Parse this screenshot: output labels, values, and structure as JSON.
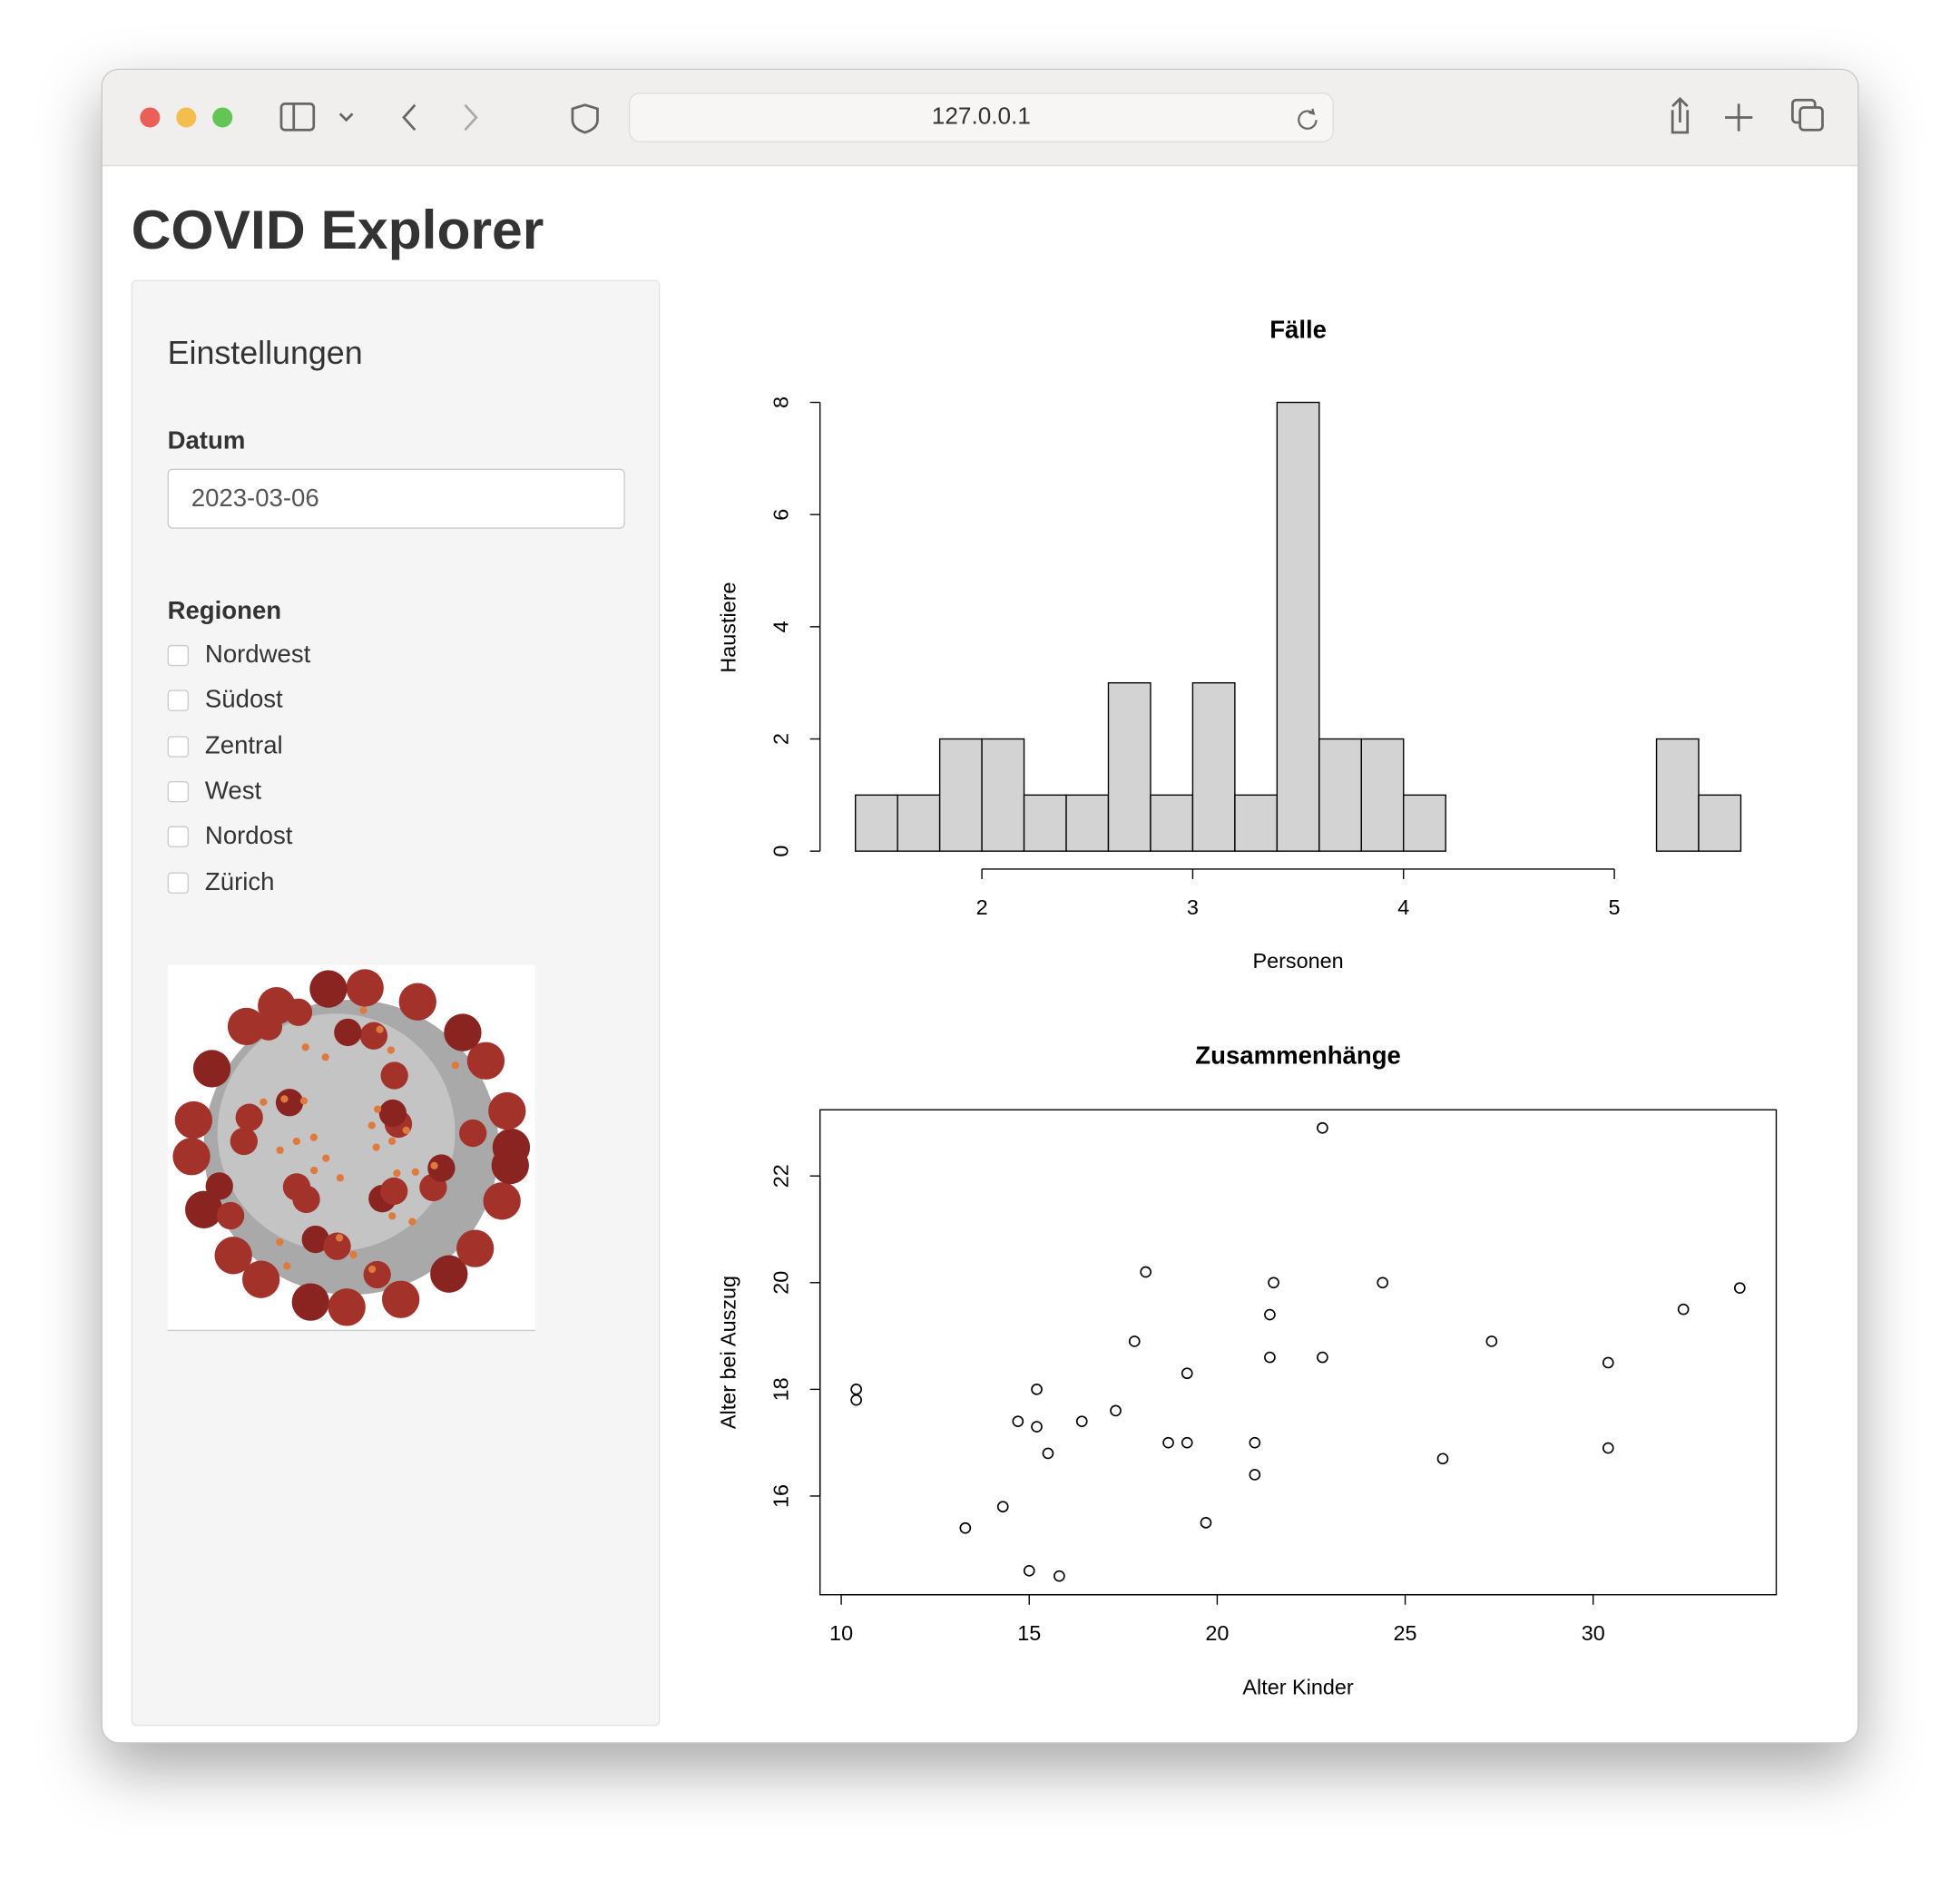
{
  "browser": {
    "url": "127.0.0.1"
  },
  "app": {
    "title": "COVID Explorer",
    "sidebar": {
      "heading": "Einstellungen",
      "date_label": "Datum",
      "date_value": "2023-03-06",
      "regions_label": "Regionen",
      "regions": [
        "Nordwest",
        "Südost",
        "Zentral",
        "West",
        "Nordost",
        "Zürich"
      ]
    }
  },
  "chart_data": [
    {
      "type": "histogram",
      "title": "Fälle",
      "x_label": "Personen",
      "y_label": "Haustiere",
      "bins": [
        1.4,
        1.6,
        1.8,
        2.0,
        2.2,
        2.4,
        2.6,
        2.8,
        3.0,
        3.2,
        3.4,
        3.6,
        3.8,
        4.0,
        4.2,
        4.4,
        4.6,
        4.8,
        5.0,
        5.2,
        5.4,
        5.6
      ],
      "counts": [
        1,
        1,
        2,
        2,
        1,
        1,
        3,
        1,
        3,
        1,
        8,
        2,
        2,
        1,
        0,
        0,
        0,
        0,
        0,
        2,
        1
      ],
      "color": "#d3d3d3",
      "xlim": [
        1.232,
        5.768
      ],
      "ylim": [
        -0.32,
        8.32
      ],
      "xticks": [
        2,
        3,
        4,
        5
      ],
      "yticks": [
        0,
        2,
        4,
        6,
        8
      ]
    },
    {
      "type": "scatter",
      "title": "Zusammenhänge",
      "x_label": "Alter Kinder",
      "y_label": "Alter bei Auszug",
      "x": [
        10.4,
        10.4,
        13.3,
        14.3,
        14.7,
        15.0,
        15.2,
        15.2,
        15.5,
        15.8,
        16.4,
        17.3,
        17.8,
        18.1,
        18.7,
        19.2,
        19.2,
        19.7,
        21.0,
        21.0,
        21.4,
        21.4,
        21.5,
        22.8,
        22.8,
        24.4,
        26.0,
        27.3,
        30.4,
        30.4,
        32.4,
        33.9
      ],
      "y": [
        18.0,
        17.8,
        15.4,
        15.8,
        17.4,
        14.6,
        18.0,
        17.3,
        16.8,
        14.5,
        17.4,
        17.6,
        18.9,
        20.2,
        17.0,
        17.0,
        18.3,
        15.5,
        17.0,
        16.4,
        19.4,
        18.6,
        20.0,
        22.9,
        18.6,
        20.0,
        16.7,
        18.9,
        18.5,
        16.9,
        19.5,
        19.9
      ],
      "color": "#000000",
      "xlim": [
        9.435,
        34.87
      ],
      "ylim": [
        14.15,
        23.24
      ],
      "xticks": [
        10,
        15,
        20,
        25,
        30
      ],
      "yticks": [
        16,
        18,
        20,
        22
      ]
    }
  ]
}
